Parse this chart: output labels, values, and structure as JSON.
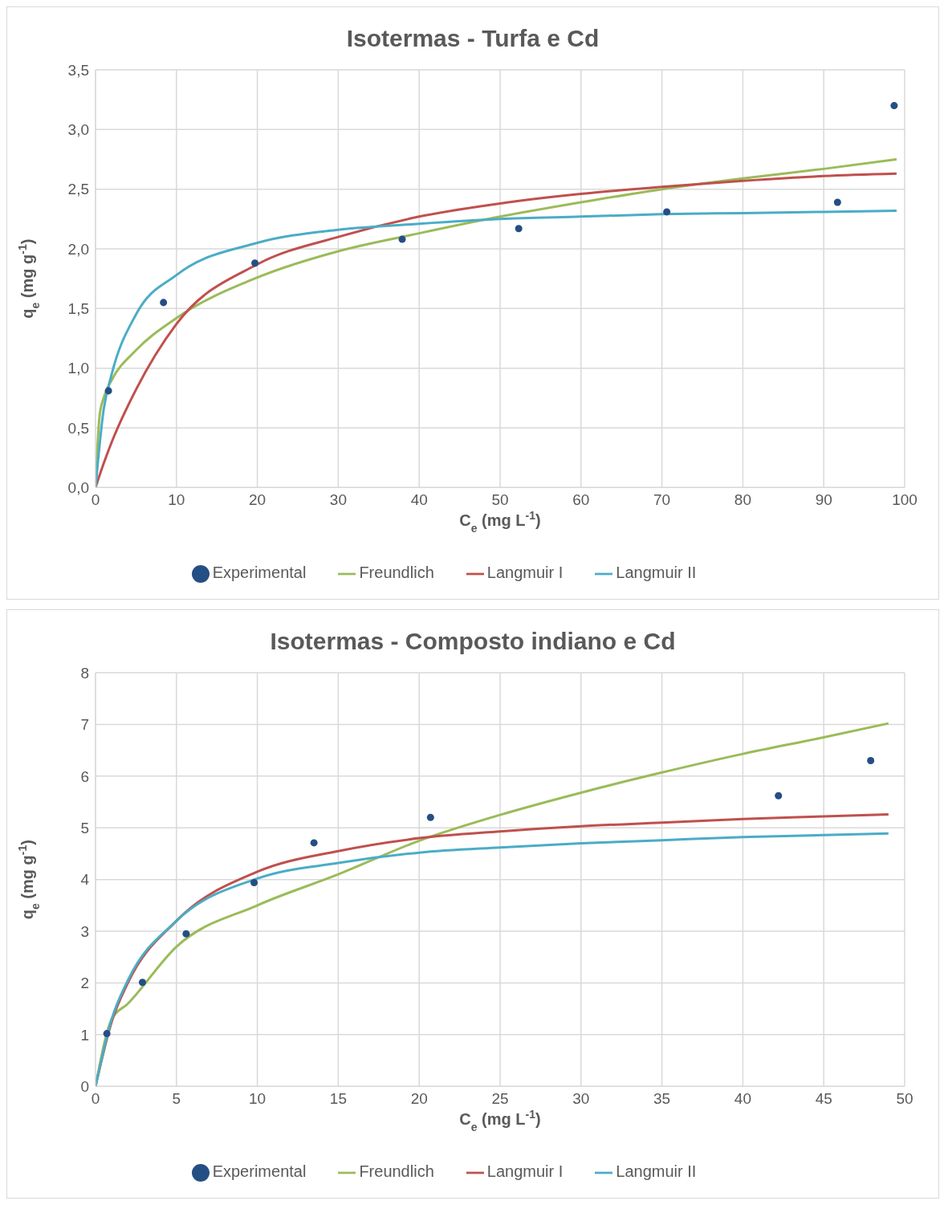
{
  "chart_data": [
    {
      "type": "line",
      "title": "Isotermas - Turfa e Cd",
      "xlabel": "C$_{e}$ (mg L$^{-1}$)",
      "ylabel": "q$_{e}$ (mg g$^{-1}$)",
      "xlim": [
        0,
        100
      ],
      "xticks": [
        0,
        10,
        20,
        30,
        40,
        50,
        60,
        70,
        80,
        90,
        100
      ],
      "ylim": [
        0,
        3.5
      ],
      "yticks": [
        {
          "value": 0,
          "label": "0,0"
        },
        {
          "value": 0.5,
          "label": "0,5"
        },
        {
          "value": 1,
          "label": "1,0"
        },
        {
          "value": 1.5,
          "label": "1,5"
        },
        {
          "value": 2,
          "label": "2,0"
        },
        {
          "value": 2.5,
          "label": "2,5"
        },
        {
          "value": 3,
          "label": "3,0"
        },
        {
          "value": 3.5,
          "label": "3,5"
        }
      ],
      "grid": true,
      "legend": "bottom",
      "series": [
        {
          "name": "Experimental",
          "type": "scatter",
          "marker": "circle",
          "color": "#254e84",
          "x": [
            1.6,
            8.4,
            19.7,
            37.9,
            52.3,
            70.6,
            91.7,
            98.7
          ],
          "values": [
            0.81,
            1.55,
            1.88,
            2.08,
            2.17,
            2.31,
            2.39,
            3.2
          ]
        },
        {
          "name": "Freundlich",
          "type": "line",
          "color": "#9bbb59",
          "x": [
            0,
            0.5,
            1,
            2,
            5,
            10,
            20,
            30,
            40,
            50,
            60,
            70,
            80,
            90,
            99
          ],
          "values": [
            0,
            0.6,
            0.75,
            0.9,
            1.15,
            1.42,
            1.76,
            1.98,
            2.13,
            2.27,
            2.39,
            2.5,
            2.59,
            2.67,
            2.75
          ]
        },
        {
          "name": "Langmuir I",
          "type": "line",
          "color": "#c0504d",
          "x": [
            0,
            1,
            2,
            5,
            10,
            20,
            30,
            40,
            50,
            60,
            70,
            80,
            90,
            99
          ],
          "values": [
            0,
            0.2,
            0.38,
            0.82,
            1.37,
            1.87,
            2.1,
            2.27,
            2.38,
            2.46,
            2.52,
            2.57,
            2.61,
            2.63
          ]
        },
        {
          "name": "Langmuir II",
          "type": "line",
          "color": "#4bacc6",
          "x": [
            0,
            1,
            2,
            5,
            10,
            20,
            30,
            40,
            50,
            60,
            70,
            80,
            90,
            99
          ],
          "values": [
            0,
            0.65,
            0.95,
            1.45,
            1.78,
            2.05,
            2.16,
            2.21,
            2.25,
            2.27,
            2.29,
            2.3,
            2.31,
            2.32
          ]
        }
      ]
    },
    {
      "type": "line",
      "title": "Isotermas - Composto indiano e Cd",
      "xlabel": "C$_{e}$ (mg L$^{-1}$)",
      "ylabel": "q$_{e}$ (mg g$^{-1}$)",
      "xlim": [
        0,
        50
      ],
      "xticks": [
        0,
        5,
        10,
        15,
        20,
        25,
        30,
        35,
        40,
        45,
        50
      ],
      "ylim": [
        0,
        8
      ],
      "yticks": [
        0,
        1,
        2,
        3,
        4,
        5,
        6,
        7,
        8
      ],
      "grid": true,
      "legend": "bottom",
      "series": [
        {
          "name": "Experimental",
          "type": "scatter",
          "marker": "circle",
          "color": "#254e84",
          "x": [
            0.7,
            2.9,
            5.6,
            9.8,
            13.5,
            20.7,
            42.2,
            47.9
          ],
          "values": [
            1.02,
            2.01,
            2.95,
            3.94,
            4.71,
            5.2,
            5.62,
            6.3
          ]
        },
        {
          "name": "Freundlich",
          "type": "line",
          "color": "#9bbb59",
          "x": [
            0,
            1,
            2,
            5,
            10,
            15,
            20,
            25,
            30,
            35,
            40,
            45,
            49
          ],
          "values": [
            0,
            1.3,
            1.6,
            2.7,
            3.5,
            4.1,
            4.75,
            5.25,
            5.68,
            6.07,
            6.43,
            6.75,
            7.02
          ]
        },
        {
          "name": "Langmuir I",
          "type": "line",
          "color": "#c0504d",
          "x": [
            0,
            1,
            2,
            5,
            10,
            15,
            20,
            25,
            30,
            35,
            40,
            45,
            49
          ],
          "values": [
            0,
            1.25,
            2.0,
            3.2,
            4.15,
            4.55,
            4.8,
            4.93,
            5.03,
            5.1,
            5.17,
            5.22,
            5.26
          ]
        },
        {
          "name": "Langmuir II",
          "type": "line",
          "color": "#4bacc6",
          "x": [
            0,
            1,
            2,
            5,
            10,
            15,
            20,
            25,
            30,
            35,
            40,
            45,
            49
          ],
          "values": [
            0,
            1.3,
            2.05,
            3.2,
            4.02,
            4.32,
            4.52,
            4.62,
            4.7,
            4.76,
            4.82,
            4.86,
            4.89
          ]
        }
      ]
    }
  ]
}
